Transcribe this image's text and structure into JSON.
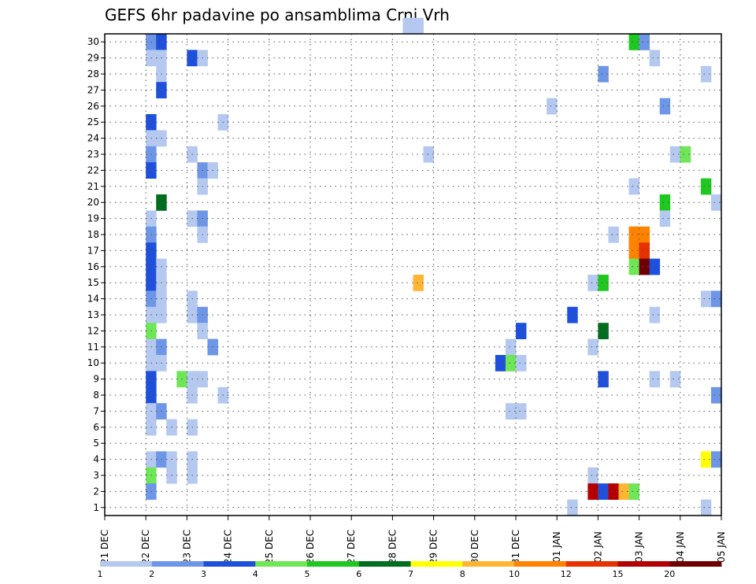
{
  "chart_data": {
    "type": "heatmap",
    "title": "GEFS 6hr padavine po ansamblima Crni Vrh",
    "xlabel": "",
    "ylabel": "",
    "x_tick_labels": [
      "21 DEC",
      "22 DEC",
      "23 DEC",
      "24 DEC",
      "25 DEC",
      "26 DEC",
      "27 DEC",
      "28 DEC",
      "29 DEC",
      "30 DEC",
      "31 DEC",
      "01 JAN",
      "02 JAN",
      "03 JAN",
      "04 JAN",
      "05 JAN"
    ],
    "x_steps_per_day": 4,
    "y_tick_labels": [
      "1",
      "2",
      "3",
      "4",
      "5",
      "6",
      "7",
      "8",
      "9",
      "10",
      "11",
      "12",
      "13",
      "14",
      "15",
      "16",
      "17",
      "18",
      "19",
      "20",
      "21",
      "22",
      "23",
      "24",
      "25",
      "26",
      "27",
      "28",
      "29",
      "30"
    ],
    "ylim": [
      0,
      30
    ],
    "grid": true,
    "colorbar": {
      "labels": [
        "1",
        "2",
        "3",
        "4",
        "5",
        "6",
        "7",
        "8",
        "10",
        "12",
        "15",
        "20"
      ],
      "colors": [
        "#b4c8f0",
        "#6e96e6",
        "#1e50dc",
        "#6ee656",
        "#1ec81e",
        "#006e1e",
        "#ffff00",
        "#ffb432",
        "#ff8200",
        "#e63200",
        "#b40000",
        "#6e0000"
      ]
    },
    "cells_columns": [
      "member",
      "step",
      "level"
    ],
    "cells": [
      [
        30,
        29,
        1
      ],
      [
        30,
        30,
        1
      ],
      [
        29,
        4,
        2
      ],
      [
        29,
        5,
        3
      ],
      [
        29,
        51,
        5
      ],
      [
        29,
        52,
        2
      ],
      [
        28,
        4,
        1
      ],
      [
        28,
        5,
        1
      ],
      [
        28,
        8,
        3
      ],
      [
        28,
        9,
        1
      ],
      [
        28,
        53,
        1
      ],
      [
        27,
        5,
        1
      ],
      [
        27,
        48,
        2
      ],
      [
        27,
        58,
        1
      ],
      [
        26,
        5,
        3
      ],
      [
        25,
        43,
        1
      ],
      [
        25,
        54,
        2
      ],
      [
        24,
        4,
        3
      ],
      [
        24,
        11,
        1
      ],
      [
        23,
        4,
        1
      ],
      [
        23,
        5,
        1
      ],
      [
        22,
        4,
        2
      ],
      [
        22,
        8,
        1
      ],
      [
        22,
        31,
        1
      ],
      [
        22,
        55,
        1
      ],
      [
        22,
        56,
        4
      ],
      [
        21,
        4,
        3
      ],
      [
        21,
        9,
        2
      ],
      [
        21,
        10,
        1
      ],
      [
        20,
        9,
        1
      ],
      [
        20,
        51,
        1
      ],
      [
        20,
        58,
        5
      ],
      [
        19,
        5,
        6
      ],
      [
        19,
        54,
        5
      ],
      [
        19,
        59,
        1
      ],
      [
        18,
        4,
        1
      ],
      [
        18,
        8,
        1
      ],
      [
        18,
        9,
        2
      ],
      [
        18,
        54,
        1
      ],
      [
        17,
        4,
        2
      ],
      [
        17,
        9,
        1
      ],
      [
        17,
        49,
        1
      ],
      [
        17,
        51,
        9
      ],
      [
        17,
        52,
        9
      ],
      [
        16,
        4,
        3
      ],
      [
        16,
        51,
        9
      ],
      [
        16,
        52,
        10
      ],
      [
        15,
        4,
        3
      ],
      [
        15,
        5,
        1
      ],
      [
        15,
        51,
        4
      ],
      [
        15,
        52,
        12
      ],
      [
        15,
        53,
        3
      ],
      [
        14,
        4,
        3
      ],
      [
        14,
        5,
        1
      ],
      [
        14,
        30,
        8
      ],
      [
        14,
        47,
        1
      ],
      [
        14,
        48,
        5
      ],
      [
        13,
        4,
        2
      ],
      [
        13,
        5,
        1
      ],
      [
        13,
        8,
        1
      ],
      [
        13,
        58,
        1
      ],
      [
        13,
        59,
        2
      ],
      [
        12,
        4,
        1
      ],
      [
        12,
        5,
        1
      ],
      [
        12,
        8,
        1
      ],
      [
        12,
        9,
        2
      ],
      [
        12,
        45,
        3
      ],
      [
        12,
        53,
        1
      ],
      [
        11,
        4,
        4
      ],
      [
        11,
        9,
        1
      ],
      [
        11,
        40,
        3
      ],
      [
        11,
        48,
        6
      ],
      [
        10,
        4,
        1
      ],
      [
        10,
        5,
        2
      ],
      [
        10,
        10,
        2
      ],
      [
        10,
        39,
        1
      ],
      [
        10,
        47,
        1
      ],
      [
        9,
        4,
        1
      ],
      [
        9,
        5,
        1
      ],
      [
        9,
        38,
        3
      ],
      [
        9,
        39,
        4
      ],
      [
        9,
        40,
        1
      ],
      [
        8,
        4,
        3
      ],
      [
        8,
        7,
        4
      ],
      [
        8,
        8,
        1
      ],
      [
        8,
        9,
        1
      ],
      [
        8,
        48,
        3
      ],
      [
        8,
        53,
        1
      ],
      [
        8,
        55,
        1
      ],
      [
        7,
        4,
        3
      ],
      [
        7,
        8,
        1
      ],
      [
        7,
        11,
        1
      ],
      [
        7,
        59,
        2
      ],
      [
        6,
        4,
        1
      ],
      [
        6,
        5,
        2
      ],
      [
        6,
        39,
        1
      ],
      [
        6,
        40,
        1
      ],
      [
        5,
        4,
        1
      ],
      [
        5,
        6,
        1
      ],
      [
        5,
        8,
        1
      ],
      [
        3,
        4,
        1
      ],
      [
        3,
        5,
        2
      ],
      [
        3,
        6,
        1
      ],
      [
        3,
        8,
        1
      ],
      [
        3,
        58,
        7
      ],
      [
        3,
        59,
        2
      ],
      [
        2,
        4,
        4
      ],
      [
        2,
        6,
        1
      ],
      [
        2,
        8,
        1
      ],
      [
        2,
        47,
        1
      ],
      [
        1,
        4,
        2
      ],
      [
        1,
        47,
        11
      ],
      [
        1,
        48,
        3
      ],
      [
        1,
        49,
        11
      ],
      [
        1,
        50,
        8
      ],
      [
        1,
        51,
        4
      ],
      [
        0,
        45,
        1
      ],
      [
        0,
        58,
        1
      ]
    ]
  }
}
